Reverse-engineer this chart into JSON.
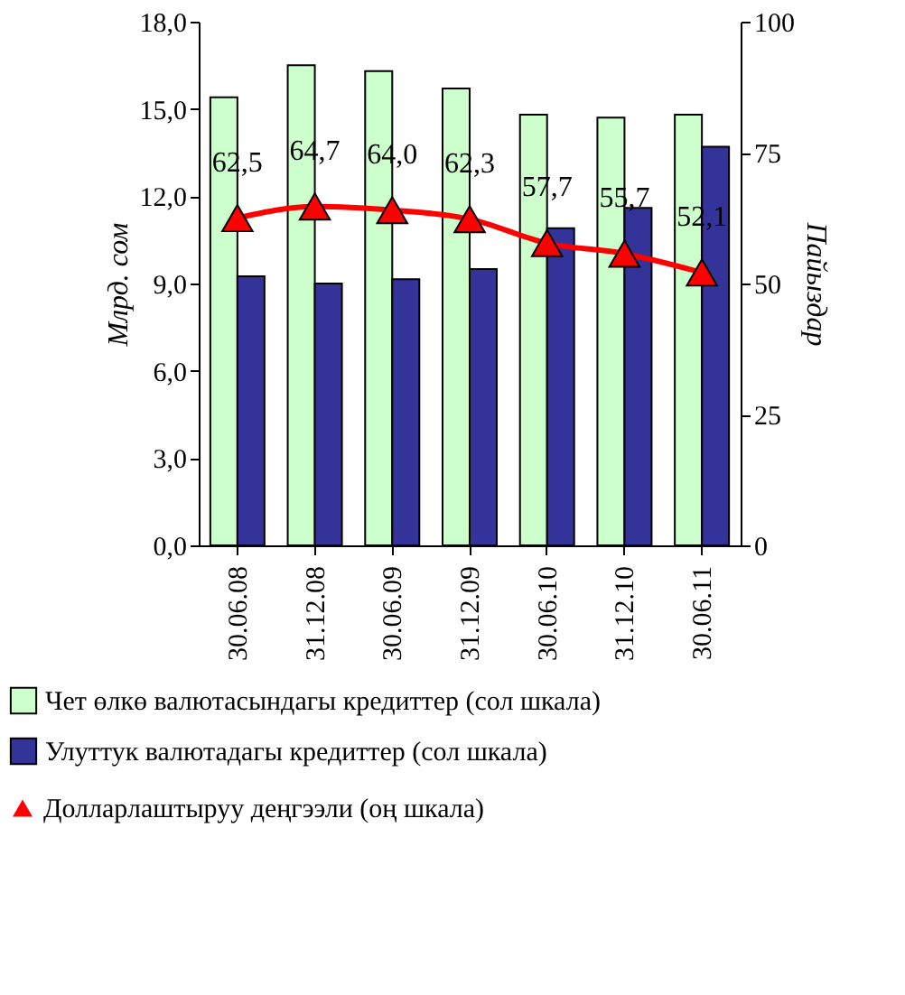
{
  "chart_data": {
    "type": "bar",
    "categories": [
      "30.06.08",
      "31.12.08",
      "30.06.09",
      "31.12.09",
      "30.06.10",
      "31.12.10",
      "30.06.11"
    ],
    "ylabel": "Млрд. сом",
    "y2label": "Пайыздар",
    "ylim": [
      0,
      18
    ],
    "yticks": [
      {
        "value": 0,
        "label": "0,0"
      },
      {
        "value": 3,
        "label": "3,0"
      },
      {
        "value": 6,
        "label": "6,0"
      },
      {
        "value": 9,
        "label": "9,0"
      },
      {
        "value": 12,
        "label": "12,0"
      },
      {
        "value": 15,
        "label": "15,0"
      },
      {
        "value": 18,
        "label": "18,0"
      }
    ],
    "y2lim": [
      0,
      100
    ],
    "y2ticks": [
      0,
      25,
      50,
      75,
      100
    ],
    "legend": "bottom",
    "grid": false,
    "series": [
      {
        "name": "Чет өлкө валютасындагы кредиттер (сол шкала)",
        "color": "#ccffcc",
        "values": [
          15.4,
          16.5,
          16.3,
          15.7,
          14.8,
          14.7,
          14.8
        ]
      },
      {
        "name": "Улуттук валютадагы кредиттер (сол шкала)",
        "color": "#333399",
        "values": [
          9.25,
          9.0,
          9.15,
          9.5,
          10.9,
          11.6,
          13.7
        ]
      },
      {
        "name": "Долларлаштыруу деңгээли (оң шкала)",
        "type": "line",
        "axis": "y2",
        "color": "#ff0000",
        "marker": "triangle",
        "values": [
          62.5,
          64.7,
          64.0,
          62.3,
          57.7,
          55.7,
          52.1
        ],
        "value_labels": [
          "62,5",
          "64,7",
          "64,0",
          "62,3",
          "57,7",
          "55,7",
          "52,1"
        ]
      }
    ]
  }
}
